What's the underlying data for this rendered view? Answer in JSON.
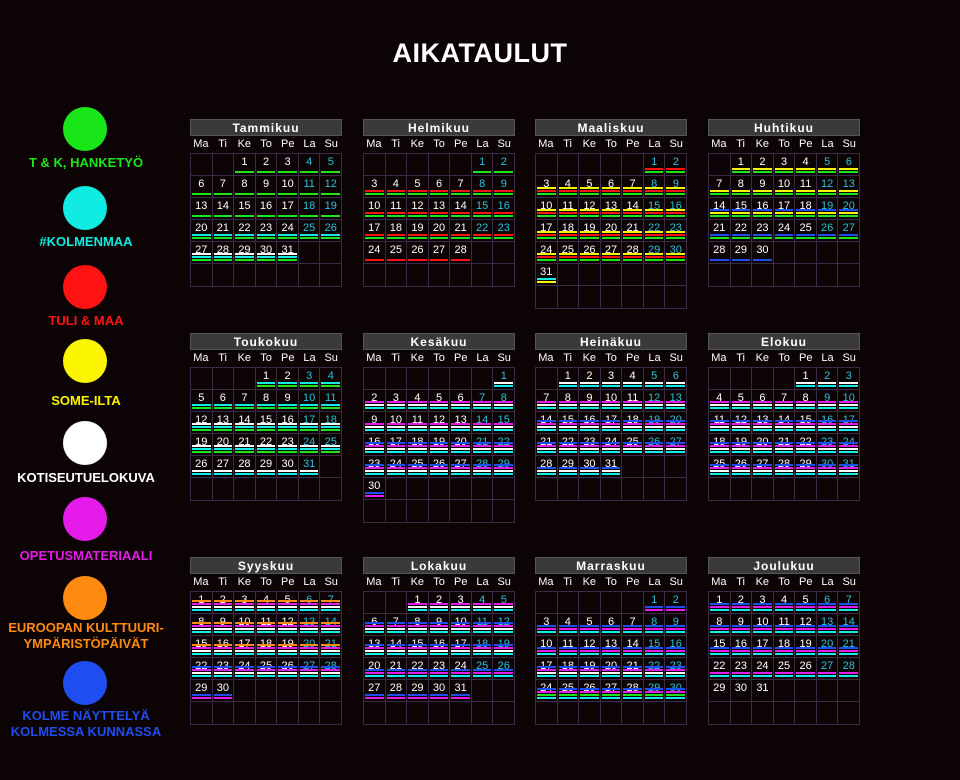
{
  "title": "AIKATAULUT",
  "legend": [
    {
      "label": "T & K, HANKETYÖ",
      "color": "#19e619"
    },
    {
      "label": "#KOLMENMAA",
      "color": "#10ece2"
    },
    {
      "label": "TULI & MAA",
      "color": "#ff1212"
    },
    {
      "label": "SOME-ILTA",
      "color": "#fbf500"
    },
    {
      "label": "KOTISEUTUELOKUVA",
      "color": "#ffffff"
    },
    {
      "label": "OPETUSMATERIAALI",
      "color": "#e51bea"
    },
    {
      "label": "EUROOPAN KULTTUURI-\nYMPÄRISTÖPÄIVÄT",
      "color": "#ff8a10"
    },
    {
      "label": "KOLME NÄYTTELYÄ\nKOLMESSA KUNNASSA",
      "color": "#1f4ef0"
    }
  ],
  "day_headers": [
    "Ma",
    "Ti",
    "Ke",
    "To",
    "Pe",
    "La",
    "Su"
  ],
  "months": [
    {
      "name": "Tammikuu",
      "start": 2,
      "days": 31,
      "weeks": 6
    },
    {
      "name": "Helmikuu",
      "start": 5,
      "days": 28,
      "weeks": 6
    },
    {
      "name": "Maaliskuu",
      "start": 5,
      "days": 31,
      "weeks": 7
    },
    {
      "name": "Huhtikuu",
      "start": 1,
      "days": 30,
      "weeks": 6
    },
    {
      "name": "Toukokuu",
      "start": 3,
      "days": 31,
      "weeks": 6
    },
    {
      "name": "Kesäkuu",
      "start": 6,
      "days": 30,
      "weeks": 7
    },
    {
      "name": "Heinäkuu",
      "start": 1,
      "days": 31,
      "weeks": 6
    },
    {
      "name": "Elokuu",
      "start": 4,
      "days": 31,
      "weeks": 6
    },
    {
      "name": "Syyskuu",
      "start": 0,
      "days": 30,
      "weeks": 6
    },
    {
      "name": "Lokakuu",
      "start": 2,
      "days": 31,
      "weeks": 6
    },
    {
      "name": "Marraskuu",
      "start": 5,
      "days": 30,
      "weeks": 6
    },
    {
      "name": "Joulukuu",
      "start": 0,
      "days": 31,
      "weeks": 6
    }
  ],
  "activity": {
    "Tammikuu": {
      "0": "g",
      "1": "g",
      "2": "g",
      "3": "g,c",
      "4": "g,c,w"
    },
    "Helmikuu": {
      "0": "g",
      "1": "g,r",
      "2": "g,r",
      "3": "g,r",
      "4": "r"
    },
    "Maaliskuu": {
      "0": "g,r",
      "1": "g,r,y",
      "2": "g,r,y",
      "3": "g,r,y",
      "4": "g,r,y",
      "5": "y,c"
    },
    "Huhtikuu": {
      "0": "g,y",
      "1": "g,y",
      "2": "g,y,b",
      "3": "g,b",
      "4": "b"
    },
    "Toukokuu": {
      "0": "g,c",
      "1": "g,c",
      "2": "g,c,w",
      "3": "g,c,w",
      "4": "c,w"
    },
    "Kesäkuu": {
      "0": "c,w",
      "1": "c,w,m",
      "2": "c,w,m",
      "3": "c,w,m,b",
      "4": "c,w,m,b",
      "5": "m,b"
    },
    "Heinäkuu": {
      "0": "c,w",
      "1": "c,w,m",
      "2": "c,w,m,b",
      "3": "c,w,m,b",
      "4": "c,w,b"
    },
    "Elokuu": {
      "0": "c,w",
      "1": "c,w,m",
      "2": "c,w,m,b",
      "3": "c,w,m,b",
      "4": "c,w,m,b"
    },
    "Syyskuu": {
      "0": "c,w,m,o",
      "1": "c,w,m,o",
      "2": "c,w,m,o",
      "3": "c,w,m,b",
      "4": "m,b"
    },
    "Lokakuu": {
      "0": "c,w,m",
      "1": "c,w,m,b",
      "2": "c,w,m,b",
      "3": "c,m,b",
      "4": "m,b"
    },
    "Marraskuu": {
      "0": "m,b",
      "1": "c,m,b",
      "2": "c,m,b",
      "3": "c,w,m,b",
      "4": "c,g,m,b"
    },
    "Joulukuu": {
      "0": "c,m,b",
      "1": "c,m,b",
      "2": "c,m,b",
      "3": "c,m",
      "4": ""
    }
  }
}
